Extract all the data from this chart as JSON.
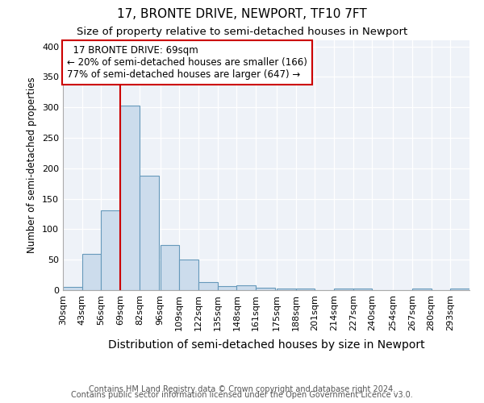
{
  "title": "17, BRONTE DRIVE, NEWPORT, TF10 7FT",
  "subtitle": "Size of property relative to semi-detached houses in Newport",
  "xlabel": "Distribution of semi-detached houses by size in Newport",
  "ylabel": "Number of semi-detached properties",
  "footer_line1": "Contains HM Land Registry data © Crown copyright and database right 2024.",
  "footer_line2": "Contains public sector information licensed under the Open Government Licence v3.0.",
  "annotation_title": "17 BRONTE DRIVE: 69sqm",
  "annotation_line1": "← 20% of semi-detached houses are smaller (166)",
  "annotation_line2": "77% of semi-detached houses are larger (647) →",
  "property_size": 69,
  "bar_color": "#ccdcec",
  "bar_edge_color": "#6699bb",
  "vline_color": "#cc0000",
  "annotation_box_edgecolor": "#cc0000",
  "bg_color": "#eef2f8",
  "bins": [
    30,
    43,
    56,
    69,
    82,
    96,
    109,
    122,
    135,
    148,
    161,
    175,
    188,
    201,
    214,
    227,
    240,
    254,
    267,
    280,
    293
  ],
  "counts": [
    5,
    59,
    131,
    303,
    188,
    74,
    50,
    13,
    6,
    8,
    4,
    3,
    2,
    0,
    2,
    3,
    0,
    0,
    2,
    0,
    2
  ],
  "ylim": [
    0,
    410
  ],
  "yticks": [
    0,
    50,
    100,
    150,
    200,
    250,
    300,
    350,
    400
  ],
  "title_fontsize": 11,
  "subtitle_fontsize": 9.5,
  "ylabel_fontsize": 8.5,
  "xlabel_fontsize": 10,
  "tick_fontsize": 8,
  "footer_fontsize": 7,
  "annotation_fontsize": 8.5
}
